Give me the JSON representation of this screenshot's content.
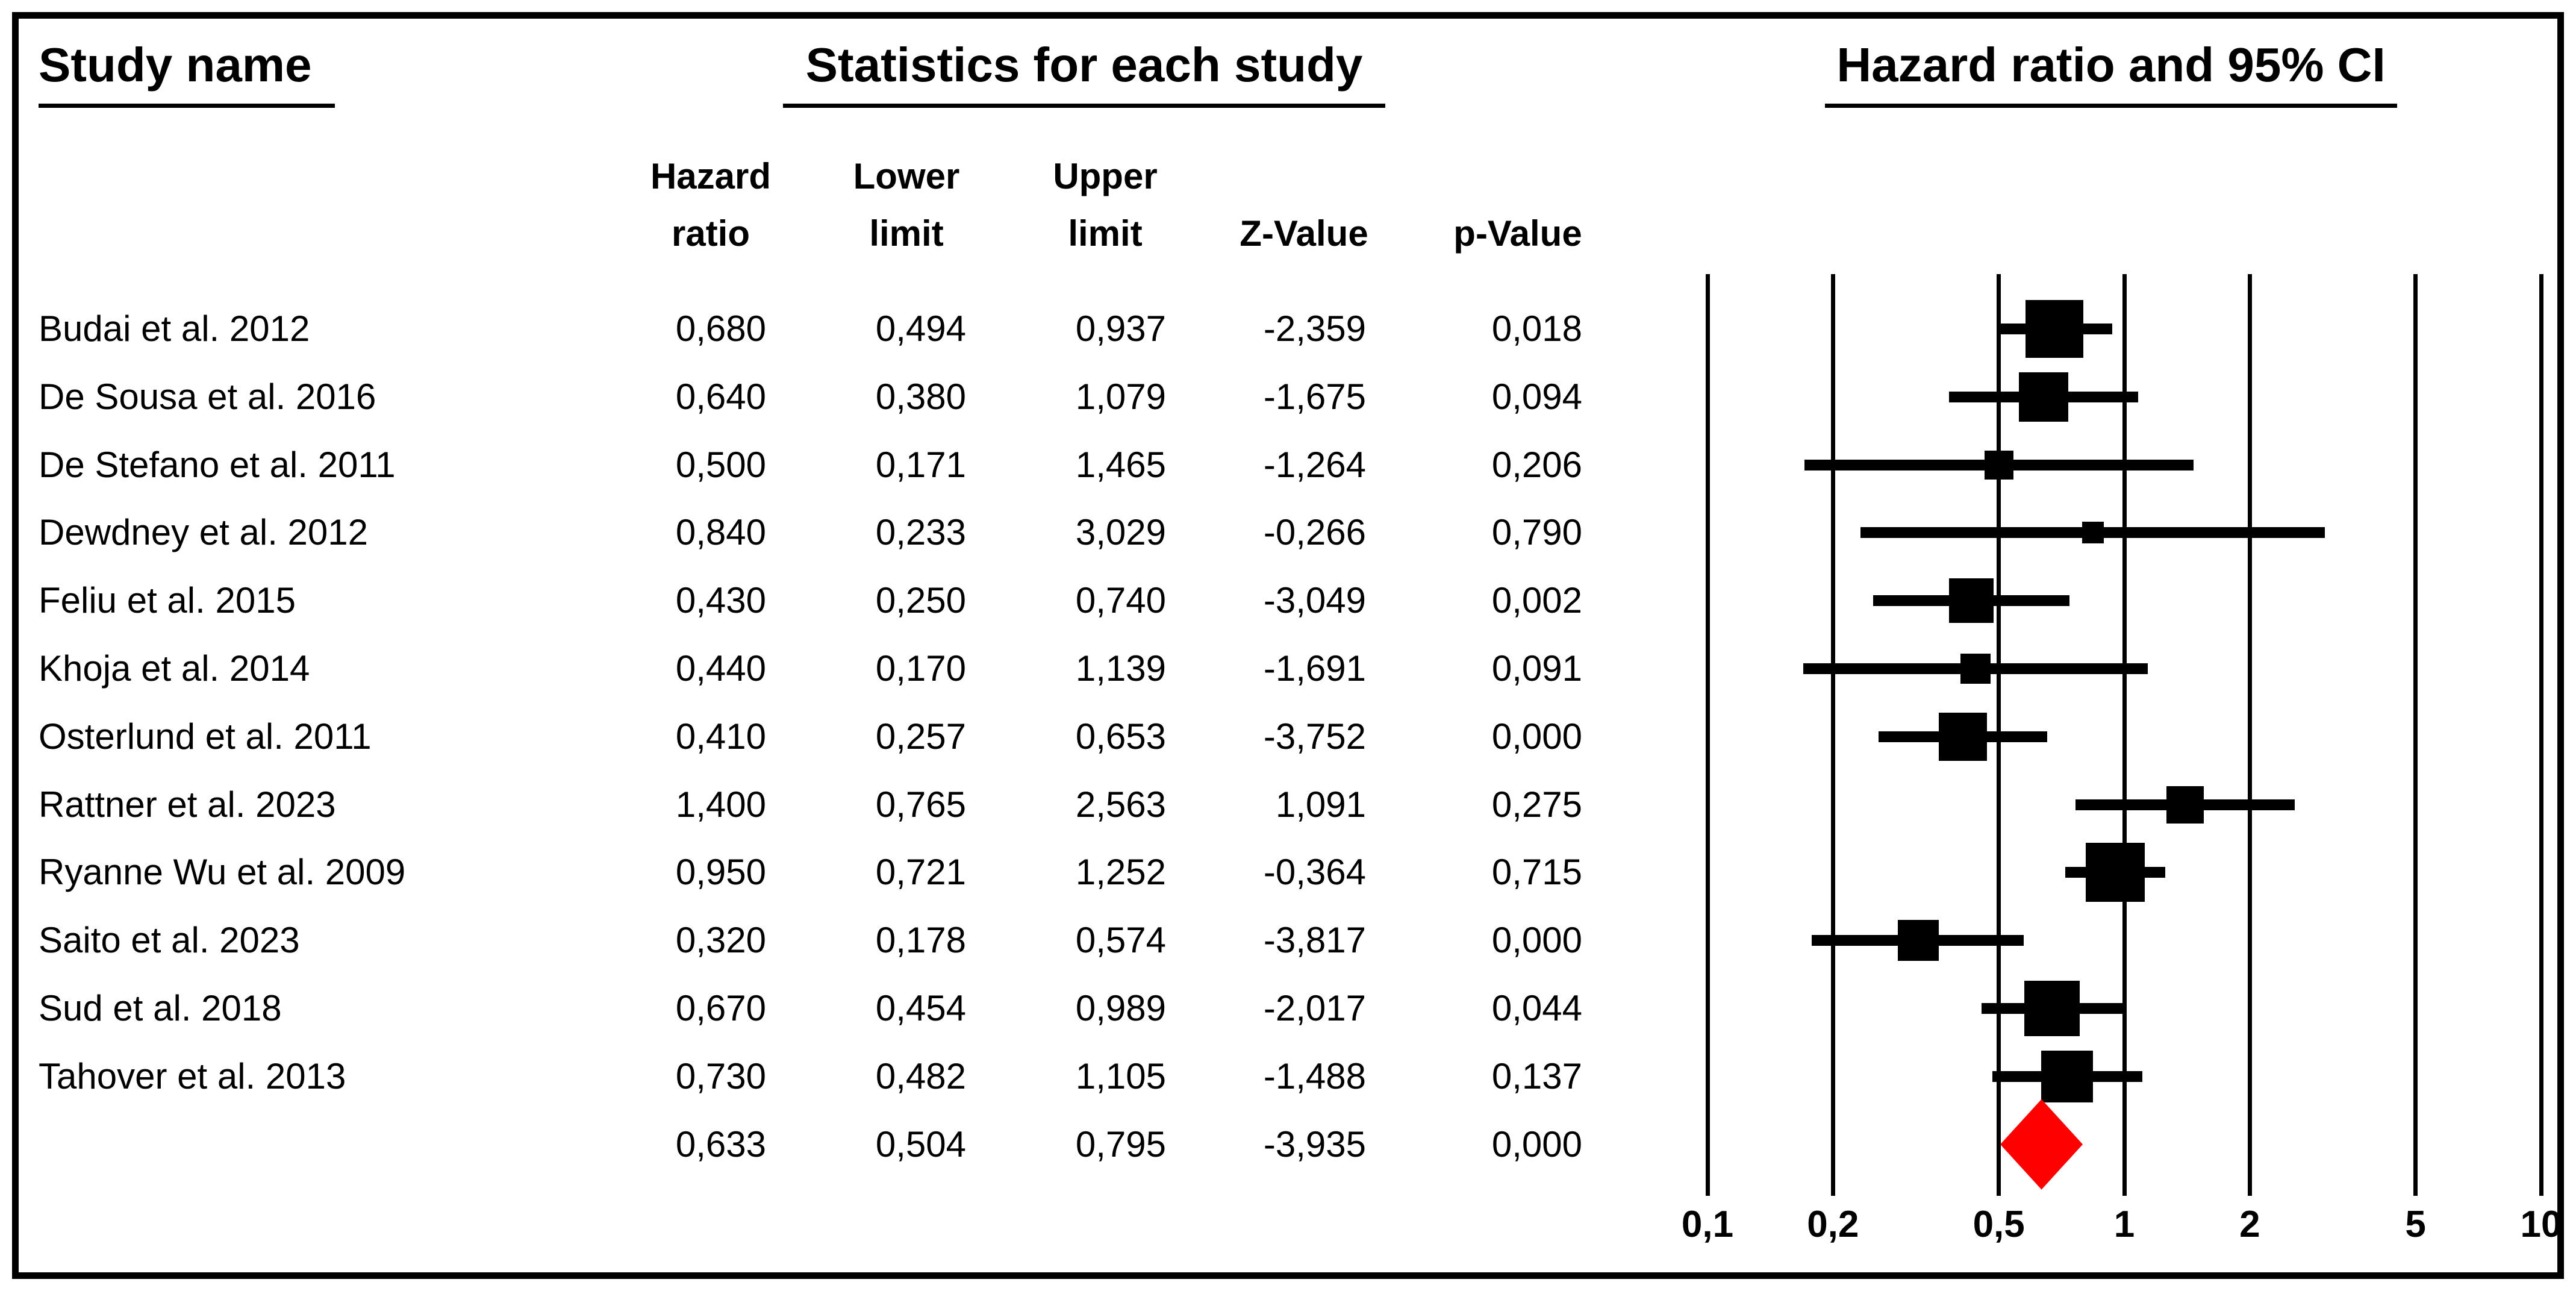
{
  "headers": {
    "study_name": "Study name",
    "statistics": "Statistics for each study",
    "plot": "Hazard ratio and 95% CI"
  },
  "columns": [
    {
      "id": "hazard_ratio",
      "header_lines": [
        "Hazard",
        "ratio"
      ]
    },
    {
      "id": "lower_limit",
      "header_lines": [
        "Lower",
        "limit"
      ]
    },
    {
      "id": "upper_limit",
      "header_lines": [
        "Upper",
        "limit"
      ]
    },
    {
      "id": "z_value",
      "header_lines": [
        "Z-Value"
      ]
    },
    {
      "id": "p_value",
      "header_lines": [
        "p-Value"
      ]
    }
  ],
  "chart_data": {
    "type": "forest",
    "title": "Hazard ratio and 95% CI",
    "x_axis": {
      "scale": "log",
      "min": 0.1,
      "max": 10,
      "ticks": [
        {
          "label": "0,1",
          "value": 0.1
        },
        {
          "label": "0,2",
          "value": 0.2
        },
        {
          "label": "0,5",
          "value": 0.5
        },
        {
          "label": "1",
          "value": 1
        },
        {
          "label": "2",
          "value": 2
        },
        {
          "label": "5",
          "value": 5
        },
        {
          "label": "10",
          "value": 10
        }
      ]
    },
    "studies": [
      {
        "name": "Budai et al. 2012",
        "values": [
          "0,680",
          "0,494",
          "0,937",
          "-2,359",
          "0,018"
        ],
        "hr": 0.68,
        "lo": 0.494,
        "hi": 0.937,
        "marker_size": 96
      },
      {
        "name": "De Sousa et al. 2016",
        "values": [
          "0,640",
          "0,380",
          "1,079",
          "-1,675",
          "0,094"
        ],
        "hr": 0.64,
        "lo": 0.38,
        "hi": 1.079,
        "marker_size": 82
      },
      {
        "name": "De Stefano et al. 2011",
        "values": [
          "0,500",
          "0,171",
          "1,465",
          "-1,264",
          "0,206"
        ],
        "hr": 0.5,
        "lo": 0.171,
        "hi": 1.465,
        "marker_size": 48
      },
      {
        "name": "Dewdney et al. 2012",
        "values": [
          "0,840",
          "0,233",
          "3,029",
          "-0,266",
          "0,790"
        ],
        "hr": 0.84,
        "lo": 0.233,
        "hi": 3.029,
        "marker_size": 36
      },
      {
        "name": "Feliu et al. 2015",
        "values": [
          "0,430",
          "0,250",
          "0,740",
          "-3,049",
          "0,002"
        ],
        "hr": 0.43,
        "lo": 0.25,
        "hi": 0.74,
        "marker_size": 74
      },
      {
        "name": "Khoja et al. 2014",
        "values": [
          "0,440",
          "0,170",
          "1,139",
          "-1,691",
          "0,091"
        ],
        "hr": 0.44,
        "lo": 0.17,
        "hi": 1.139,
        "marker_size": 50
      },
      {
        "name": "Osterlund et al. 2011",
        "values": [
          "0,410",
          "0,257",
          "0,653",
          "-3,752",
          "0,000"
        ],
        "hr": 0.41,
        "lo": 0.257,
        "hi": 0.653,
        "marker_size": 80
      },
      {
        "name": "Rattner et al. 2023",
        "values": [
          "1,400",
          "0,765",
          "2,563",
          "1,091",
          "0,275"
        ],
        "hr": 1.4,
        "lo": 0.765,
        "hi": 2.563,
        "marker_size": 62
      },
      {
        "name": "Ryanne Wu et al. 2009",
        "values": [
          "0,950",
          "0,721",
          "1,252",
          "-0,364",
          "0,715"
        ],
        "hr": 0.95,
        "lo": 0.721,
        "hi": 1.252,
        "marker_size": 98
      },
      {
        "name": "Saito et al. 2023",
        "values": [
          "0,320",
          "0,178",
          "0,574",
          "-3,817",
          "0,000"
        ],
        "hr": 0.32,
        "lo": 0.178,
        "hi": 0.574,
        "marker_size": 68
      },
      {
        "name": "Sud et al. 2018",
        "values": [
          "0,670",
          "0,454",
          "0,989",
          "-2,017",
          "0,044"
        ],
        "hr": 0.67,
        "lo": 0.454,
        "hi": 0.989,
        "marker_size": 92
      },
      {
        "name": "Tahover et al. 2013",
        "values": [
          "0,730",
          "0,482",
          "1,105",
          "-1,488",
          "0,137"
        ],
        "hr": 0.73,
        "lo": 0.482,
        "hi": 1.105,
        "marker_size": 86
      }
    ],
    "summary": {
      "name": "",
      "values": [
        "0,633",
        "0,504",
        "0,795",
        "-3,935",
        "0,000"
      ],
      "hr": 0.633,
      "lo": 0.504,
      "hi": 0.795
    },
    "colors": {
      "marker": "#000000",
      "summary_diamond": "#ff0000"
    },
    "legend_position": "none",
    "grid": true
  }
}
